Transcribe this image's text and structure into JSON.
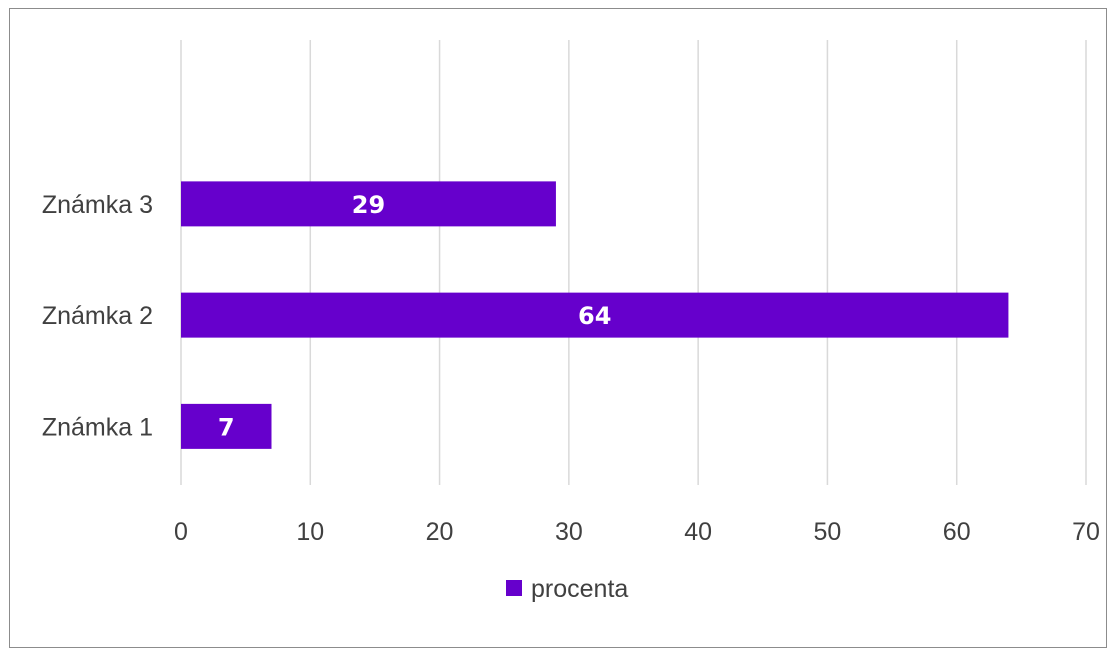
{
  "chart_data": {
    "type": "bar",
    "orientation": "horizontal",
    "categories": [
      "Známka 1",
      "Známka 2",
      "Známka 3"
    ],
    "series": [
      {
        "name": "procenta",
        "values": [
          7,
          64,
          29
        ],
        "color": "#6600cc"
      }
    ],
    "data_labels": [
      "7",
      "64",
      "29"
    ],
    "xlim": [
      0,
      70
    ],
    "x_ticks": [
      "0",
      "10",
      "20",
      "30",
      "40",
      "50",
      "60",
      "70"
    ],
    "grid": "vertical",
    "legend": {
      "position": "bottom",
      "entries": [
        "procenta"
      ]
    },
    "title": "",
    "xlabel": "",
    "ylabel": ""
  }
}
